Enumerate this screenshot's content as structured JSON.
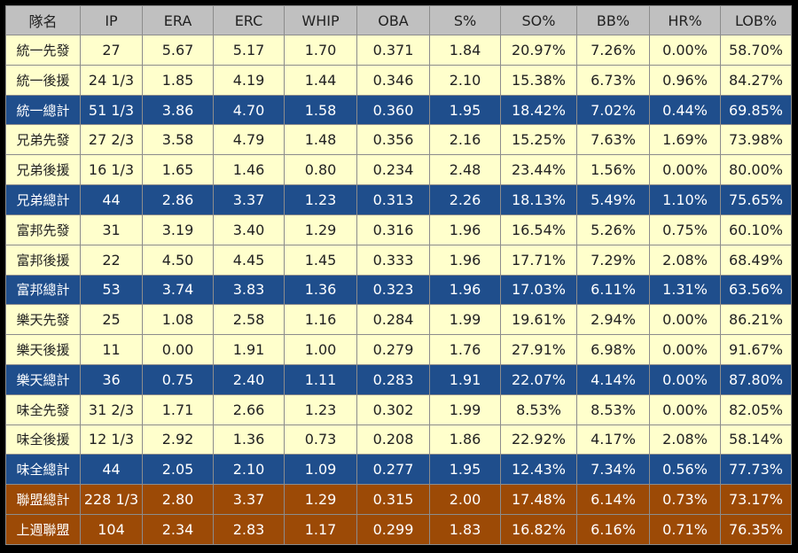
{
  "chart_data": {
    "type": "table",
    "columns": [
      "隊名",
      "IP",
      "ERA",
      "ERC",
      "WHIP",
      "OBA",
      "S%",
      "SO%",
      "BB%",
      "HR%",
      "LOB%"
    ],
    "rows": [
      {
        "kind": "light",
        "cells": [
          "統一先發",
          "27",
          "5.67",
          "5.17",
          "1.70",
          "0.371",
          "1.84",
          "20.97%",
          "7.26%",
          "0.00%",
          "58.70%"
        ]
      },
      {
        "kind": "light",
        "cells": [
          "統一後援",
          "24 1/3",
          "1.85",
          "4.19",
          "1.44",
          "0.346",
          "2.10",
          "15.38%",
          "6.73%",
          "0.96%",
          "84.27%"
        ]
      },
      {
        "kind": "total",
        "cells": [
          "統一總計",
          "51 1/3",
          "3.86",
          "4.70",
          "1.58",
          "0.360",
          "1.95",
          "18.42%",
          "7.02%",
          "0.44%",
          "69.85%"
        ]
      },
      {
        "kind": "light",
        "cells": [
          "兄弟先發",
          "27 2/3",
          "3.58",
          "4.79",
          "1.48",
          "0.356",
          "2.16",
          "15.25%",
          "7.63%",
          "1.69%",
          "73.98%"
        ]
      },
      {
        "kind": "light",
        "cells": [
          "兄弟後援",
          "16 1/3",
          "1.65",
          "1.46",
          "0.80",
          "0.234",
          "2.48",
          "23.44%",
          "1.56%",
          "0.00%",
          "80.00%"
        ]
      },
      {
        "kind": "total",
        "cells": [
          "兄弟總計",
          "44",
          "2.86",
          "3.37",
          "1.23",
          "0.313",
          "2.26",
          "18.13%",
          "5.49%",
          "1.10%",
          "75.65%"
        ]
      },
      {
        "kind": "light",
        "cells": [
          "富邦先發",
          "31",
          "3.19",
          "3.40",
          "1.29",
          "0.316",
          "1.96",
          "16.54%",
          "5.26%",
          "0.75%",
          "60.10%"
        ]
      },
      {
        "kind": "light",
        "cells": [
          "富邦後援",
          "22",
          "4.50",
          "4.45",
          "1.45",
          "0.333",
          "1.96",
          "17.71%",
          "7.29%",
          "2.08%",
          "68.49%"
        ]
      },
      {
        "kind": "total",
        "cells": [
          "富邦總計",
          "53",
          "3.74",
          "3.83",
          "1.36",
          "0.323",
          "1.96",
          "17.03%",
          "6.11%",
          "1.31%",
          "63.56%"
        ]
      },
      {
        "kind": "light",
        "cells": [
          "樂天先發",
          "25",
          "1.08",
          "2.58",
          "1.16",
          "0.284",
          "1.99",
          "19.61%",
          "2.94%",
          "0.00%",
          "86.21%"
        ]
      },
      {
        "kind": "light",
        "cells": [
          "樂天後援",
          "11",
          "0.00",
          "1.91",
          "1.00",
          "0.279",
          "1.76",
          "27.91%",
          "6.98%",
          "0.00%",
          "91.67%"
        ]
      },
      {
        "kind": "total",
        "cells": [
          "樂天總計",
          "36",
          "0.75",
          "2.40",
          "1.11",
          "0.283",
          "1.91",
          "22.07%",
          "4.14%",
          "0.00%",
          "87.80%"
        ]
      },
      {
        "kind": "light",
        "cells": [
          "味全先發",
          "31 2/3",
          "1.71",
          "2.66",
          "1.23",
          "0.302",
          "1.99",
          "8.53%",
          "8.53%",
          "0.00%",
          "82.05%"
        ]
      },
      {
        "kind": "light",
        "cells": [
          "味全後援",
          "12 1/3",
          "2.92",
          "1.36",
          "0.73",
          "0.208",
          "1.86",
          "22.92%",
          "4.17%",
          "2.08%",
          "58.14%"
        ]
      },
      {
        "kind": "total",
        "cells": [
          "味全總計",
          "44",
          "2.05",
          "2.10",
          "1.09",
          "0.277",
          "1.95",
          "12.43%",
          "7.34%",
          "0.56%",
          "77.73%"
        ]
      },
      {
        "kind": "league",
        "cells": [
          "聯盟總計",
          "228 1/3",
          "2.80",
          "3.37",
          "1.29",
          "0.315",
          "2.00",
          "17.48%",
          "6.14%",
          "0.73%",
          "73.17%"
        ]
      },
      {
        "kind": "league",
        "cells": [
          "上週聯盟",
          "104",
          "2.34",
          "2.83",
          "1.17",
          "0.299",
          "1.83",
          "16.82%",
          "6.16%",
          "0.71%",
          "76.35%"
        ]
      }
    ],
    "colors": {
      "header_bg": "#c0c0c0",
      "row_bg": "#ffffcc",
      "team_total_bg": "#1f4e8c",
      "league_bg": "#9c4a06",
      "border": "#8c8c8c",
      "page_bg": "#000000"
    }
  }
}
